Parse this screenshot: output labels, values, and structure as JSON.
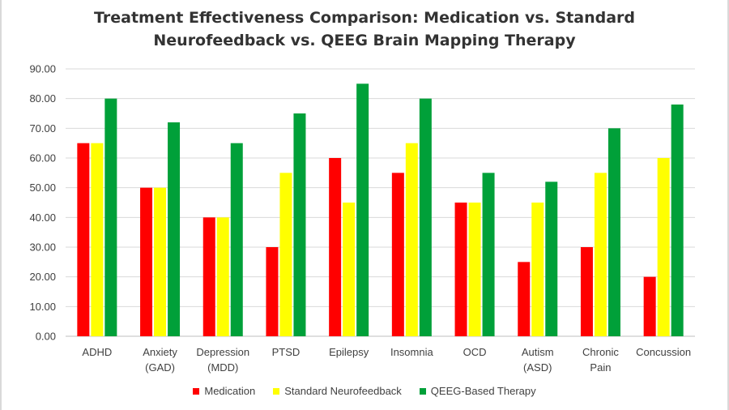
{
  "chart_data": {
    "type": "bar",
    "title_line1": "Treatment Effectiveness Comparison: Medication vs. Standard",
    "title_line2": "Neurofeedback vs. QEEG Brain Mapping Therapy",
    "xlabel": "",
    "ylabel": "",
    "ylim": [
      0,
      90
    ],
    "yticks": [
      "0.00",
      "10.00",
      "20.00",
      "30.00",
      "40.00",
      "50.00",
      "60.00",
      "70.00",
      "80.00",
      "90.00"
    ],
    "grid": true,
    "legend_position": "bottom",
    "categories": [
      [
        "ADHD"
      ],
      [
        "Anxiety",
        "(GAD)"
      ],
      [
        "Depression",
        "(MDD)"
      ],
      [
        "PTSD"
      ],
      [
        "Epilepsy"
      ],
      [
        "Insomnia"
      ],
      [
        "OCD"
      ],
      [
        "Autism",
        "(ASD)"
      ],
      [
        "Chronic",
        "Pain"
      ],
      [
        "Concussion"
      ]
    ],
    "series": [
      {
        "name": "Medication",
        "color": "#ff0000",
        "values": [
          65,
          50,
          40,
          30,
          60,
          55,
          45,
          25,
          30,
          20
        ]
      },
      {
        "name": "Standard Neurofeedback",
        "color": "#ffff00",
        "values": [
          65,
          50,
          40,
          55,
          45,
          65,
          45,
          45,
          55,
          60
        ]
      },
      {
        "name": "QEEG-Based Therapy",
        "color": "#00a039",
        "values": [
          80,
          72,
          65,
          75,
          85,
          80,
          55,
          52,
          70,
          78
        ]
      }
    ]
  }
}
